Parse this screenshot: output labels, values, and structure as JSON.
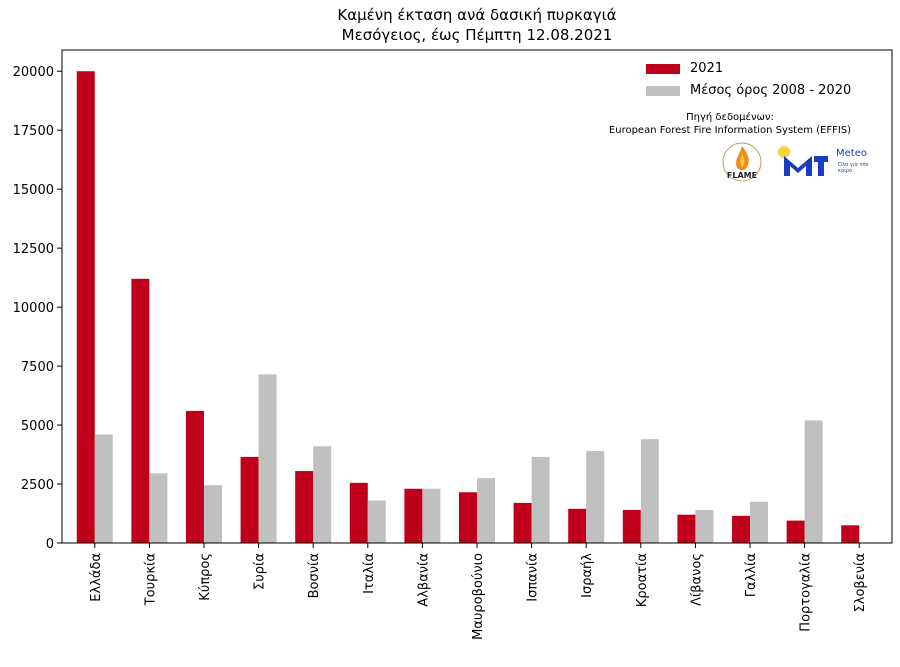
{
  "header": {
    "title_line1": "Καμένη έκταση ανά δασική πυρκαγιά",
    "title_line2": "Μεσόγειος, έως Πέμπτη 12.08.2021"
  },
  "legend": {
    "series1": "2021",
    "series2": "Μέσος όρος 2008 - 2020"
  },
  "source": {
    "label": "Πηγή δεδομένων:",
    "name": "European Forest Fire Information System (EFFIS)"
  },
  "logos": {
    "flame_text": "FLAME",
    "meteo_name": "Meteo",
    "meteo_tagline": "Όλα για τον καιρό"
  },
  "colors": {
    "series_2021": "#c0001a",
    "series_avg": "#c0c0c0",
    "meteo_blue": "#1a3cc2",
    "sun_yellow": "#f7d23a"
  },
  "chart_data": {
    "type": "bar",
    "categories": [
      "Ελλάδα",
      "Τουρκία",
      "Κύπρος",
      "Συρία",
      "Βοσνία",
      "Ιταλία",
      "Αλβανία",
      "Μαυροβούνιο",
      "Ισπανία",
      "Ισραήλ",
      "Κροατία",
      "Λίβανος",
      "Γαλλία",
      "Πορτογαλία",
      "Σλοβενία"
    ],
    "series": [
      {
        "name": "2021",
        "values": [
          20000,
          11200,
          5600,
          3650,
          3050,
          2550,
          2300,
          2150,
          1700,
          1450,
          1400,
          1200,
          1150,
          950,
          750
        ]
      },
      {
        "name": "Μέσος όρος 2008 - 2020",
        "values": [
          4600,
          2950,
          2450,
          7150,
          4100,
          1800,
          2300,
          2750,
          3650,
          3900,
          4400,
          1400,
          1750,
          5200,
          0
        ]
      }
    ],
    "yticks": [
      0,
      2500,
      5000,
      7500,
      10000,
      12500,
      15000,
      17500,
      20000
    ],
    "ylim": [
      0,
      20900
    ],
    "title": "Καμένη έκταση ανά δασική πυρκαγιά Μεσόγειος, έως Πέμπτη 12.08.2021",
    "xlabel": "",
    "ylabel": "",
    "grid": false,
    "legend_position": "top-right"
  }
}
